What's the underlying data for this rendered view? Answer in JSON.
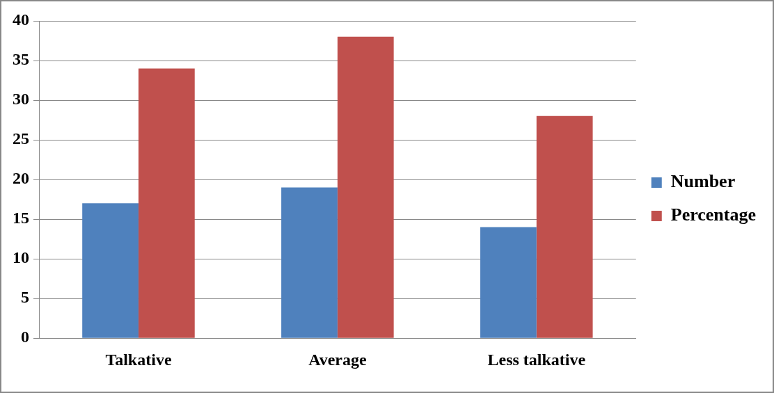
{
  "chart_data": {
    "type": "bar",
    "categories": [
      "Talkative",
      "Average",
      "Less talkative"
    ],
    "series": [
      {
        "name": "Number",
        "color": "#4f81bd",
        "values": [
          17,
          19,
          14
        ]
      },
      {
        "name": "Percentage",
        "color": "#c0504d",
        "values": [
          34,
          38,
          28
        ]
      }
    ],
    "ylim": [
      0,
      40
    ],
    "yticks": [
      0,
      5,
      10,
      15,
      20,
      25,
      30,
      35,
      40
    ],
    "grid": "y",
    "legend": "right"
  }
}
